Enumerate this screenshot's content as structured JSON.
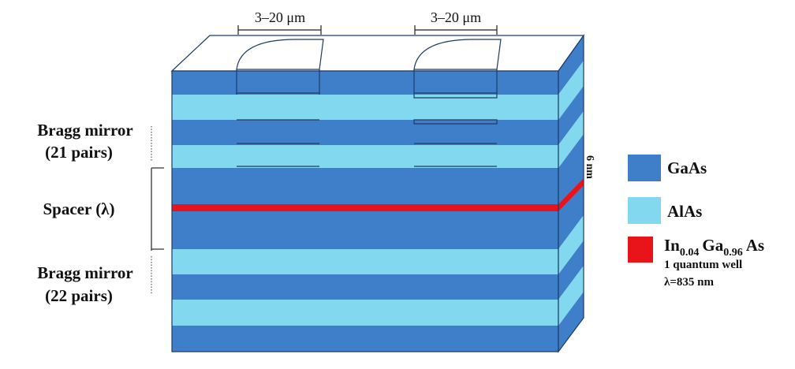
{
  "dimensions": [
    "3–20 μm",
    "3–20 μm"
  ],
  "left_labels": {
    "top_mirror": {
      "line1": "Bragg mirror",
      "line2": "(21 pairs)"
    },
    "spacer": "Spacer (λ)",
    "bottom_mirror": {
      "line1": "Bragg mirror",
      "line2": "(22 pairs)"
    }
  },
  "thickness_label": "6 nm",
  "legend": [
    {
      "label": "GaAs"
    },
    {
      "label": "AlAs"
    },
    {
      "label_parts": [
        "In",
        "0.04",
        "Ga",
        "0.96",
        "As"
      ],
      "note": "1 quantum well",
      "wavelength": "λ=835 nm"
    }
  ]
}
